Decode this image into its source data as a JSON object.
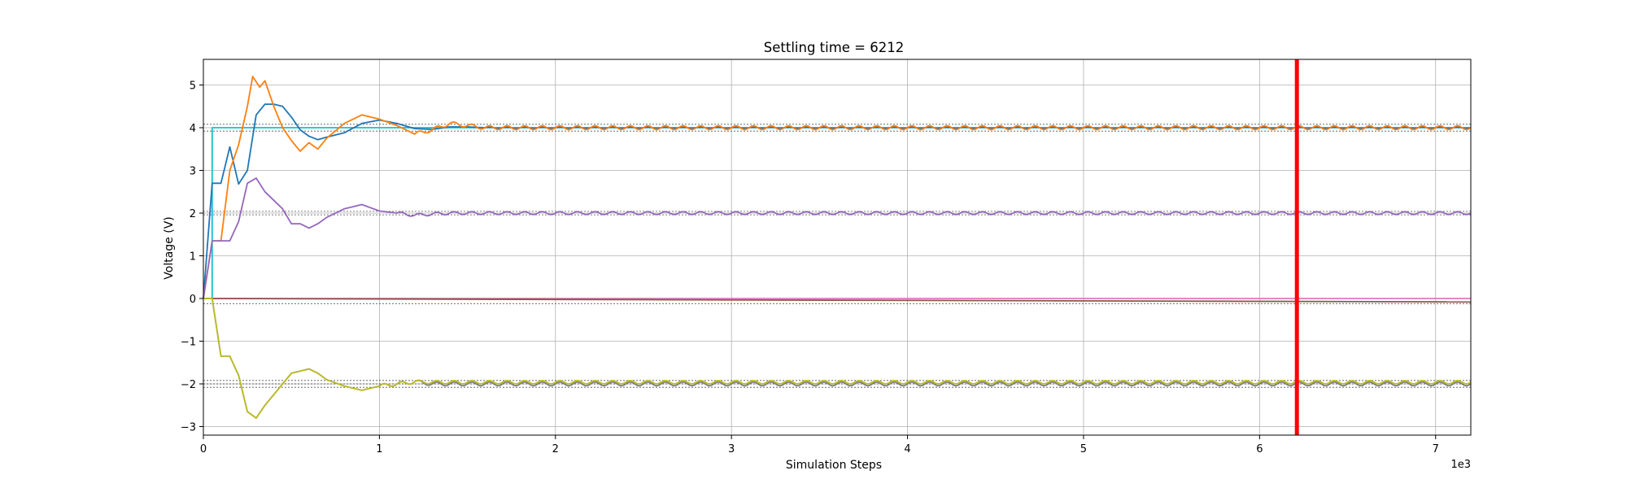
{
  "chart_data": {
    "type": "line",
    "title": "Settling time = 6212",
    "xlabel": "Simulation Steps",
    "ylabel": "Voltage (V)",
    "x_scale_label": "1e3",
    "xlim": [
      0,
      7.2
    ],
    "ylim": [
      -3.2,
      5.6
    ],
    "x_ticks": [
      0,
      1,
      2,
      3,
      4,
      5,
      6,
      7
    ],
    "x_tick_labels": [
      "0",
      "1",
      "2",
      "3",
      "4",
      "5",
      "6",
      "7"
    ],
    "y_ticks": [
      -3,
      -2,
      -1,
      0,
      1,
      2,
      3,
      4,
      5
    ],
    "y_tick_labels": [
      "−3",
      "−2",
      "−1",
      "0",
      "1",
      "2",
      "3",
      "4",
      "5"
    ],
    "grid": true,
    "settling_marker": {
      "x": 6.212,
      "color": "#ff0000"
    },
    "tolerance_bands": [
      {
        "center": 4.0,
        "lower": 3.92,
        "upper": 4.08
      },
      {
        "center": 2.0,
        "lower": 1.96,
        "upper": 2.04
      },
      {
        "center": -1.96,
        "lower": -2.0,
        "upper": -1.92
      },
      {
        "center": -2.04,
        "lower": -2.08,
        "upper": -2.0
      },
      {
        "center": -0.04,
        "lower": -0.12,
        "upper": 0.0
      }
    ],
    "series": [
      {
        "color": "#17becf",
        "x": [
          0,
          0.05,
          0.05,
          7.2
        ],
        "y": [
          0,
          0,
          4.0,
          4.0
        ]
      },
      {
        "color": "#1f77b4",
        "x": [
          0,
          0.05,
          0.1,
          0.15,
          0.2,
          0.25,
          0.3,
          0.35,
          0.4,
          0.45,
          0.5,
          0.55,
          0.6,
          0.65,
          0.7,
          0.8,
          0.9,
          1.0,
          1.1,
          1.2,
          1.3,
          1.4,
          1.5,
          1.6,
          1.8,
          7.2
        ],
        "y": [
          0,
          2.7,
          2.7,
          3.55,
          2.68,
          3.0,
          4.3,
          4.55,
          4.55,
          4.5,
          4.25,
          3.95,
          3.8,
          3.72,
          3.78,
          3.88,
          4.1,
          4.18,
          4.1,
          3.98,
          3.96,
          4.02,
          4.02,
          4.0,
          4.0,
          4.0
        ],
        "osc_after": 1.6,
        "osc_amp": 0.015,
        "osc_period": 0.1
      },
      {
        "color": "#ff7f0e",
        "x": [
          0,
          0.05,
          0.1,
          0.15,
          0.2,
          0.25,
          0.28,
          0.32,
          0.35,
          0.4,
          0.45,
          0.5,
          0.55,
          0.6,
          0.65,
          0.7,
          0.8,
          0.9,
          1.0,
          1.1,
          1.2,
          1.3,
          1.4,
          1.5,
          1.6,
          1.8,
          7.2
        ],
        "y": [
          0,
          1.35,
          1.35,
          3.0,
          3.6,
          4.5,
          5.2,
          4.95,
          5.1,
          4.5,
          4.0,
          3.7,
          3.45,
          3.65,
          3.5,
          3.75,
          4.1,
          4.3,
          4.2,
          4.05,
          3.85,
          3.95,
          4.1,
          4.05,
          4.0,
          4.0,
          4.0
        ],
        "osc_after": 1.2,
        "osc_amp": 0.045,
        "osc_period": 0.1
      },
      {
        "color": "#9467bd",
        "x": [
          0,
          0.05,
          0.1,
          0.15,
          0.2,
          0.25,
          0.3,
          0.35,
          0.4,
          0.45,
          0.5,
          0.55,
          0.6,
          0.65,
          0.7,
          0.8,
          0.9,
          1.0,
          1.1,
          1.2,
          1.3,
          1.4,
          1.5,
          7.2
        ],
        "y": [
          0,
          1.35,
          1.35,
          1.35,
          1.8,
          2.7,
          2.82,
          2.5,
          2.3,
          2.1,
          1.75,
          1.75,
          1.65,
          1.75,
          1.9,
          2.1,
          2.2,
          2.05,
          2.0,
          1.95,
          1.98,
          2.0,
          2.0,
          2.0
        ],
        "osc_after": 1.1,
        "osc_amp": 0.035,
        "osc_period": 0.1
      },
      {
        "color": "#e377c2",
        "x": [
          0,
          7.2
        ],
        "y": [
          0,
          0
        ],
        "osc_after": 99,
        "osc_amp": 0,
        "osc_period": 0.1
      },
      {
        "color": "#8c564b",
        "x": [
          0,
          7.2
        ],
        "y": [
          0,
          -0.08
        ],
        "osc_after": 99,
        "osc_amp": 0,
        "osc_period": 0.1
      },
      {
        "color": "#7f7f7f",
        "x": [
          0,
          0.05,
          0.1,
          0.15,
          0.2,
          0.25,
          0.3,
          0.35,
          0.4,
          0.45,
          0.5,
          0.55,
          0.6,
          0.65,
          0.7,
          0.8,
          0.9,
          1.0,
          1.1,
          1.2,
          1.3,
          7.2
        ],
        "y": [
          0,
          0,
          -1.35,
          -1.35,
          -1.8,
          -2.65,
          -2.8,
          -2.5,
          -2.25,
          -2.0,
          -1.75,
          -1.7,
          -1.65,
          -1.75,
          -1.9,
          -2.05,
          -2.15,
          -2.05,
          -2.0,
          -1.95,
          -2.0,
          -2.0
        ],
        "osc_after": 1.0,
        "osc_amp": 0.045,
        "osc_period": 0.1
      },
      {
        "color": "#bcbd22",
        "x": [
          0,
          0.05,
          0.1,
          0.15,
          0.2,
          0.25,
          0.3,
          0.35,
          0.4,
          0.45,
          0.5,
          0.55,
          0.6,
          0.65,
          0.7,
          0.8,
          0.9,
          1.0,
          1.1,
          1.2,
          1.3,
          7.2
        ],
        "y": [
          0,
          0,
          -1.35,
          -1.35,
          -1.8,
          -2.65,
          -2.8,
          -2.5,
          -2.25,
          -2.0,
          -1.75,
          -1.7,
          -1.65,
          -1.75,
          -1.9,
          -2.05,
          -2.15,
          -2.05,
          -2.0,
          -1.95,
          -1.96,
          -1.96
        ],
        "osc_after": 1.0,
        "osc_amp": 0.04,
        "osc_period": 0.1
      }
    ]
  }
}
